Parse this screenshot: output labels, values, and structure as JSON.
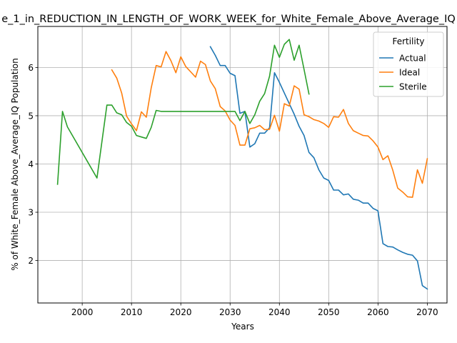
{
  "chart_data": {
    "type": "line",
    "title": "e_1_in_REDUCTION_IN_LENGTH_OF_WORK_WEEK_for_White_Female_Above_Average_IQ",
    "xlabel": "Years",
    "ylabel": "% of White_Female Above_Average_IQ Population",
    "xlim": [
      1991,
      2074
    ],
    "ylim": [
      1.12,
      6.85
    ],
    "xticks": [
      2000,
      2010,
      2020,
      2030,
      2040,
      2050,
      2060,
      2070
    ],
    "yticks": [
      2,
      3,
      4,
      5,
      6
    ],
    "grid": true,
    "legend": {
      "title": "Fertility",
      "placement": "top-right"
    },
    "series": [
      {
        "name": "Actual",
        "color": "#1f77b4",
        "points": [
          [
            2026,
            6.43
          ],
          [
            2027,
            6.25
          ],
          [
            2028,
            6.04
          ],
          [
            2029,
            6.04
          ],
          [
            2030,
            5.88
          ],
          [
            2031,
            5.83
          ],
          [
            2032,
            5.05
          ],
          [
            2033,
            5.09
          ],
          [
            2034,
            4.35
          ],
          [
            2035,
            4.42
          ],
          [
            2036,
            4.64
          ],
          [
            2037,
            4.64
          ],
          [
            2038,
            4.75
          ],
          [
            2039,
            5.89
          ],
          [
            2040,
            5.69
          ],
          [
            2041,
            5.47
          ],
          [
            2042,
            5.25
          ],
          [
            2043,
            5.03
          ],
          [
            2044,
            4.78
          ],
          [
            2045,
            4.59
          ],
          [
            2046,
            4.24
          ],
          [
            2047,
            4.13
          ],
          [
            2048,
            3.88
          ],
          [
            2049,
            3.71
          ],
          [
            2050,
            3.66
          ],
          [
            2051,
            3.46
          ],
          [
            2052,
            3.46
          ],
          [
            2053,
            3.36
          ],
          [
            2054,
            3.38
          ],
          [
            2055,
            3.27
          ],
          [
            2056,
            3.25
          ],
          [
            2057,
            3.19
          ],
          [
            2058,
            3.19
          ],
          [
            2059,
            3.08
          ],
          [
            2060,
            3.03
          ],
          [
            2061,
            2.35
          ],
          [
            2062,
            2.29
          ],
          [
            2063,
            2.28
          ],
          [
            2064,
            2.22
          ],
          [
            2065,
            2.17
          ],
          [
            2066,
            2.13
          ],
          [
            2067,
            2.11
          ],
          [
            2068,
            1.99
          ],
          [
            2069,
            1.48
          ],
          [
            2070,
            1.41
          ]
        ]
      },
      {
        "name": "Ideal",
        "color": "#ff7f0e",
        "points": [
          [
            2006,
            5.95
          ],
          [
            2007,
            5.78
          ],
          [
            2008,
            5.47
          ],
          [
            2009,
            4.99
          ],
          [
            2010,
            4.83
          ],
          [
            2011,
            4.69
          ],
          [
            2012,
            5.08
          ],
          [
            2013,
            4.97
          ],
          [
            2014,
            5.58
          ],
          [
            2015,
            6.04
          ],
          [
            2016,
            6.01
          ],
          [
            2017,
            6.33
          ],
          [
            2018,
            6.14
          ],
          [
            2019,
            5.89
          ],
          [
            2020,
            6.22
          ],
          [
            2021,
            6.02
          ],
          [
            2022,
            5.91
          ],
          [
            2023,
            5.8
          ],
          [
            2024,
            6.13
          ],
          [
            2025,
            6.06
          ],
          [
            2026,
            5.72
          ],
          [
            2027,
            5.56
          ],
          [
            2028,
            5.19
          ],
          [
            2029,
            5.1
          ],
          [
            2030,
            4.91
          ],
          [
            2031,
            4.8
          ],
          [
            2032,
            4.39
          ],
          [
            2033,
            4.39
          ],
          [
            2034,
            4.73
          ],
          [
            2035,
            4.75
          ],
          [
            2036,
            4.8
          ],
          [
            2037,
            4.71
          ],
          [
            2038,
            4.72
          ],
          [
            2039,
            5.01
          ],
          [
            2040,
            4.68
          ],
          [
            2041,
            5.25
          ],
          [
            2042,
            5.2
          ],
          [
            2043,
            5.62
          ],
          [
            2044,
            5.55
          ],
          [
            2045,
            5.02
          ],
          [
            2046,
            4.98
          ],
          [
            2047,
            4.92
          ],
          [
            2048,
            4.89
          ],
          [
            2049,
            4.84
          ],
          [
            2050,
            4.76
          ],
          [
            2051,
            4.98
          ],
          [
            2052,
            4.97
          ],
          [
            2053,
            5.13
          ],
          [
            2054,
            4.84
          ],
          [
            2055,
            4.69
          ],
          [
            2056,
            4.64
          ],
          [
            2057,
            4.59
          ],
          [
            2058,
            4.58
          ],
          [
            2059,
            4.48
          ],
          [
            2060,
            4.35
          ],
          [
            2061,
            4.09
          ],
          [
            2062,
            4.17
          ],
          [
            2063,
            3.87
          ],
          [
            2064,
            3.5
          ],
          [
            2065,
            3.42
          ],
          [
            2066,
            3.32
          ],
          [
            2067,
            3.31
          ],
          [
            2068,
            3.88
          ],
          [
            2069,
            3.6
          ],
          [
            2070,
            4.11
          ]
        ]
      },
      {
        "name": "Sterile",
        "color": "#2ca02c",
        "points": [
          [
            1995,
            3.58
          ],
          [
            1996,
            5.09
          ],
          [
            1997,
            4.77
          ],
          [
            2003,
            3.71
          ],
          [
            2005,
            5.22
          ],
          [
            2006,
            5.22
          ],
          [
            2007,
            5.06
          ],
          [
            2008,
            5.02
          ],
          [
            2009,
            4.86
          ],
          [
            2010,
            4.78
          ],
          [
            2011,
            4.59
          ],
          [
            2012,
            4.56
          ],
          [
            2013,
            4.53
          ],
          [
            2014,
            4.76
          ],
          [
            2015,
            5.11
          ],
          [
            2016,
            5.09
          ],
          [
            2020,
            5.09
          ],
          [
            2025,
            5.09
          ],
          [
            2030,
            5.09
          ],
          [
            2031,
            5.09
          ],
          [
            2032,
            4.9
          ],
          [
            2033,
            5.09
          ],
          [
            2034,
            4.84
          ],
          [
            2035,
            5.02
          ],
          [
            2036,
            5.3
          ],
          [
            2037,
            5.46
          ],
          [
            2038,
            5.82
          ],
          [
            2039,
            6.46
          ],
          [
            2040,
            6.21
          ],
          [
            2041,
            6.48
          ],
          [
            2042,
            6.58
          ],
          [
            2043,
            6.15
          ],
          [
            2044,
            6.46
          ],
          [
            2045,
            5.96
          ],
          [
            2046,
            5.45
          ]
        ]
      }
    ]
  }
}
